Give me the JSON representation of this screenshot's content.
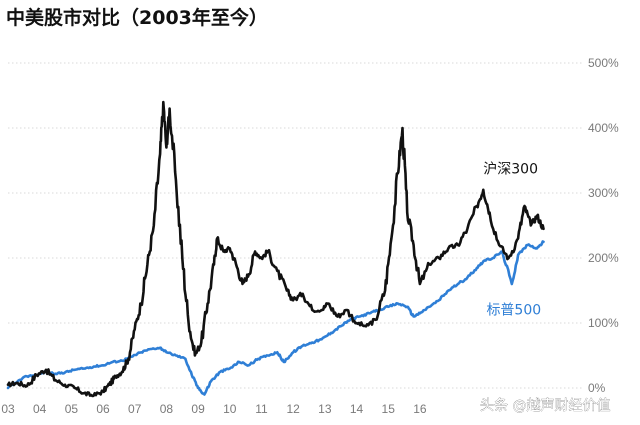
{
  "colors": {
    "csi300": "#111111",
    "sp500": "#2f7fd6",
    "grid": "#d9d9d9",
    "axis_text": "#7a7a7a",
    "title": "#111111",
    "watermark": "#ffffff"
  },
  "watermark": "头条 @越声财经价值",
  "chart_data": {
    "type": "line",
    "title": "中美股市对比（2003年至今）",
    "xlabel": "",
    "ylabel": "",
    "xlim": [
      2003.0,
      2020.8
    ],
    "ylim": [
      0,
      500
    ],
    "grid": true,
    "x_ticks": [
      {
        "x": 2003,
        "label": "03"
      },
      {
        "x": 2004,
        "label": "04"
      },
      {
        "x": 2005,
        "label": "05"
      },
      {
        "x": 2006,
        "label": "06"
      },
      {
        "x": 2007,
        "label": "07"
      },
      {
        "x": 2008,
        "label": "08"
      },
      {
        "x": 2009,
        "label": "09"
      },
      {
        "x": 2010,
        "label": "10"
      },
      {
        "x": 2011,
        "label": "11"
      },
      {
        "x": 2012,
        "label": "12"
      },
      {
        "x": 2013,
        "label": "13"
      },
      {
        "x": 2014,
        "label": "14"
      },
      {
        "x": 2015,
        "label": "15"
      },
      {
        "x": 2016,
        "label": "16"
      }
    ],
    "y_ticks": [
      {
        "y": 0,
        "label": "0%"
      },
      {
        "y": 100,
        "label": "100%"
      },
      {
        "y": 200,
        "label": "200%"
      },
      {
        "y": 300,
        "label": "300%"
      },
      {
        "y": 400,
        "label": "400%"
      },
      {
        "y": 500,
        "label": "500%"
      }
    ],
    "series": [
      {
        "name": "沪深300",
        "color": "#111111",
        "label_at": {
          "x": 2018.0,
          "y": 330
        },
        "points": [
          [
            2003.0,
            5
          ],
          [
            2003.3,
            8
          ],
          [
            2003.6,
            3
          ],
          [
            2003.9,
            20
          ],
          [
            2004.2,
            28
          ],
          [
            2004.5,
            12
          ],
          [
            2004.8,
            5
          ],
          [
            2005.1,
            0
          ],
          [
            2005.4,
            -8
          ],
          [
            2005.7,
            -12
          ],
          [
            2006.0,
            -5
          ],
          [
            2006.2,
            5
          ],
          [
            2006.4,
            18
          ],
          [
            2006.6,
            25
          ],
          [
            2006.8,
            45
          ],
          [
            2007.0,
            90
          ],
          [
            2007.2,
            130
          ],
          [
            2007.4,
            190
          ],
          [
            2007.6,
            250
          ],
          [
            2007.8,
            360
          ],
          [
            2007.9,
            440
          ],
          [
            2008.0,
            370
          ],
          [
            2008.1,
            430
          ],
          [
            2008.3,
            320
          ],
          [
            2008.5,
            200
          ],
          [
            2008.7,
            100
          ],
          [
            2008.9,
            50
          ],
          [
            2009.1,
            70
          ],
          [
            2009.3,
            130
          ],
          [
            2009.5,
            190
          ],
          [
            2009.6,
            230
          ],
          [
            2009.8,
            210
          ],
          [
            2010.0,
            215
          ],
          [
            2010.2,
            190
          ],
          [
            2010.4,
            160
          ],
          [
            2010.6,
            175
          ],
          [
            2010.8,
            210
          ],
          [
            2011.0,
            200
          ],
          [
            2011.2,
            210
          ],
          [
            2011.5,
            180
          ],
          [
            2011.8,
            150
          ],
          [
            2012.0,
            135
          ],
          [
            2012.3,
            145
          ],
          [
            2012.6,
            120
          ],
          [
            2012.9,
            120
          ],
          [
            2013.1,
            130
          ],
          [
            2013.4,
            110
          ],
          [
            2013.7,
            120
          ],
          [
            2014.0,
            100
          ],
          [
            2014.3,
            95
          ],
          [
            2014.6,
            105
          ],
          [
            2014.9,
            150
          ],
          [
            2015.1,
            230
          ],
          [
            2015.3,
            330
          ],
          [
            2015.45,
            400
          ],
          [
            2015.6,
            270
          ],
          [
            2015.8,
            220
          ],
          [
            2016.0,
            160
          ],
          [
            2016.3,
            190
          ],
          [
            2016.6,
            200
          ],
          [
            2016.9,
            215
          ],
          [
            2017.2,
            220
          ],
          [
            2017.5,
            245
          ],
          [
            2017.8,
            280
          ],
          [
            2018.0,
            305
          ],
          [
            2018.2,
            270
          ],
          [
            2018.5,
            220
          ],
          [
            2018.8,
            200
          ],
          [
            2019.1,
            230
          ],
          [
            2019.3,
            280
          ],
          [
            2019.5,
            250
          ],
          [
            2019.7,
            265
          ],
          [
            2019.9,
            245
          ]
        ]
      },
      {
        "name": "标普500",
        "color": "#2f7fd6",
        "label_at": {
          "x": 2018.1,
          "y": 113
        },
        "points": [
          [
            2003.0,
            0
          ],
          [
            2003.3,
            10
          ],
          [
            2003.6,
            18
          ],
          [
            2003.9,
            20
          ],
          [
            2004.2,
            25
          ],
          [
            2004.5,
            22
          ],
          [
            2004.8,
            24
          ],
          [
            2005.1,
            28
          ],
          [
            2005.4,
            30
          ],
          [
            2005.7,
            33
          ],
          [
            2006.0,
            35
          ],
          [
            2006.3,
            40
          ],
          [
            2006.6,
            42
          ],
          [
            2006.9,
            48
          ],
          [
            2007.2,
            55
          ],
          [
            2007.5,
            60
          ],
          [
            2007.8,
            62
          ],
          [
            2008.0,
            55
          ],
          [
            2008.3,
            50
          ],
          [
            2008.6,
            45
          ],
          [
            2008.8,
            20
          ],
          [
            2009.0,
            0
          ],
          [
            2009.2,
            -10
          ],
          [
            2009.4,
            10
          ],
          [
            2009.7,
            25
          ],
          [
            2010.0,
            30
          ],
          [
            2010.3,
            40
          ],
          [
            2010.6,
            35
          ],
          [
            2010.9,
            45
          ],
          [
            2011.2,
            50
          ],
          [
            2011.5,
            55
          ],
          [
            2011.7,
            40
          ],
          [
            2012.0,
            55
          ],
          [
            2012.3,
            65
          ],
          [
            2012.6,
            70
          ],
          [
            2012.9,
            75
          ],
          [
            2013.2,
            85
          ],
          [
            2013.5,
            95
          ],
          [
            2013.8,
            105
          ],
          [
            2014.1,
            110
          ],
          [
            2014.4,
            115
          ],
          [
            2014.7,
            120
          ],
          [
            2015.0,
            125
          ],
          [
            2015.3,
            130
          ],
          [
            2015.6,
            125
          ],
          [
            2015.8,
            110
          ],
          [
            2016.0,
            115
          ],
          [
            2016.3,
            125
          ],
          [
            2016.6,
            135
          ],
          [
            2016.9,
            150
          ],
          [
            2017.2,
            160
          ],
          [
            2017.5,
            170
          ],
          [
            2017.8,
            185
          ],
          [
            2018.0,
            195
          ],
          [
            2018.3,
            200
          ],
          [
            2018.6,
            210
          ],
          [
            2018.9,
            160
          ],
          [
            2019.1,
            205
          ],
          [
            2019.4,
            220
          ],
          [
            2019.7,
            215
          ],
          [
            2019.9,
            225
          ]
        ]
      }
    ]
  }
}
